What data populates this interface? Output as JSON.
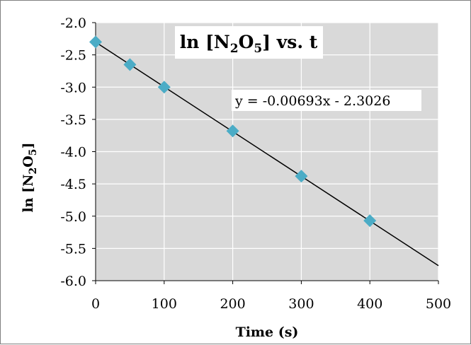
{
  "chart_data": {
    "type": "scatter",
    "title": {
      "prefix": "ln [N",
      "sub1": "2",
      "mid": "O",
      "sub2": "5",
      "suffix": "] vs. t"
    },
    "xlabel": "Time (s)",
    "ylabel": {
      "prefix": "ln [N",
      "sub1": "2",
      "mid": "O",
      "sub2": "5",
      "suffix": "]"
    },
    "xlim": [
      0,
      500
    ],
    "ylim": [
      -6.0,
      -2.0
    ],
    "x_ticks": [
      "0",
      "100",
      "200",
      "300",
      "400",
      "500"
    ],
    "x_tick_values": [
      0,
      100,
      200,
      300,
      400,
      500
    ],
    "y_ticks": [
      "-2.0",
      "-2.5",
      "-3.0",
      "-3.5",
      "-4.0",
      "-4.5",
      "-5.0",
      "-5.5",
      "-6.0"
    ],
    "y_tick_values": [
      -2.0,
      -2.5,
      -3.0,
      -3.5,
      -4.0,
      -4.5,
      -5.0,
      -5.5,
      -6.0
    ],
    "grid": true,
    "series": [
      {
        "x": [
          0,
          50,
          100,
          200,
          300,
          400
        ],
        "y": [
          -2.3,
          -2.65,
          -3.0,
          -3.68,
          -4.38,
          -5.07
        ],
        "marker": "diamond",
        "color": "#4bacc6"
      }
    ],
    "trendline": {
      "slope": -0.00693,
      "intercept": -2.3026,
      "x_range": [
        0,
        500
      ],
      "color": "#000000",
      "equation": "y = -0.00693x - 2.3026"
    },
    "colors": {
      "plot_background": "#d9d9d9",
      "gridline": "#ffffff",
      "marker": "#4bacc6"
    }
  }
}
